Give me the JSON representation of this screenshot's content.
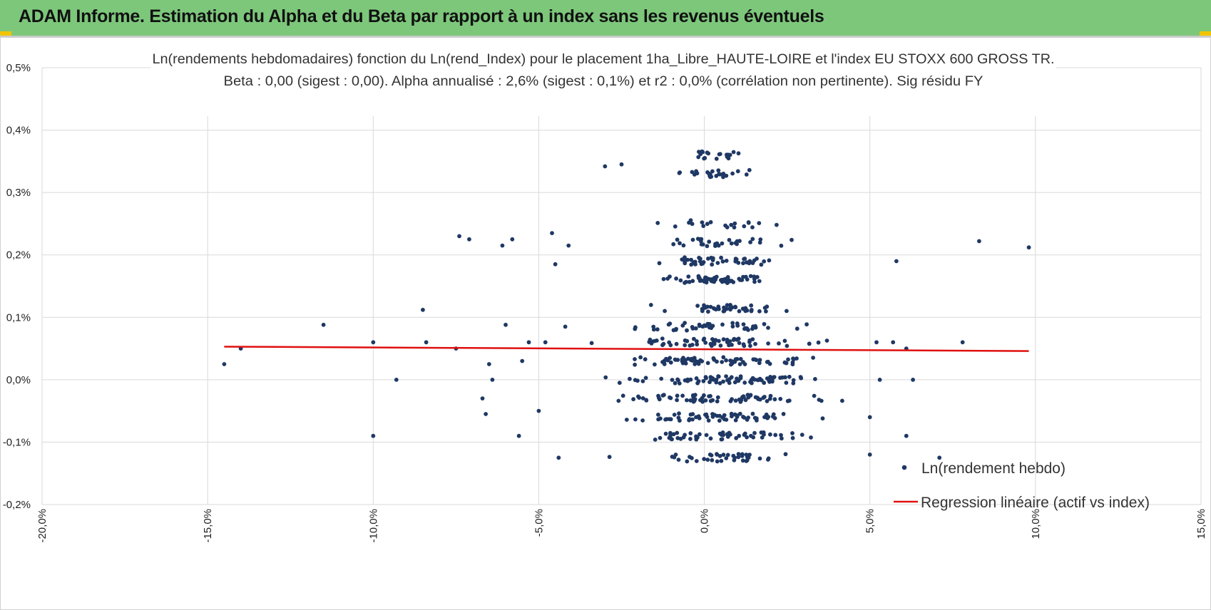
{
  "header": {
    "title": "ADAM Informe. Estimation du Alpha et du Beta par rapport à un index sans les revenus éventuels"
  },
  "colors": {
    "header_bg": "#7dc77b",
    "corner_accent": "#f2c400",
    "points": "#1f3864",
    "regression": "#e01010",
    "grid": "#d9d9d9"
  },
  "chart_data": {
    "type": "scatter",
    "title": "Ln(rendements hebdomadaires) fonction du Ln(rend_Index) pour le placement 1ha_Libre_HAUTE-LOIRE et l'index EU STOXX 600 GROSS TR.",
    "subtitle": "Beta : 0,00 (sigest : 0,00). Alpha annualisé : 2,6% (sigest : 0,1%) et r2 : 0,0% (corrélation non pertinente). Sig résidu FY",
    "xlim": [
      -0.2,
      0.15
    ],
    "ylim": [
      -0.002,
      0.005
    ],
    "x_ticks": [
      "-20,0%",
      "-15,0%",
      "-10,0%",
      "-5,0%",
      "0,0%",
      "5,0%",
      "10,0%",
      "15,0%"
    ],
    "y_ticks": [
      "-0,2%",
      "-0,1%",
      "0,0%",
      "0,1%",
      "0,2%",
      "0,3%",
      "0,4%",
      "0,5%"
    ],
    "grid": true,
    "legend_position": "bottom-right",
    "legend": [
      {
        "label": "Ln(rendement hebdo)",
        "marker": "point"
      },
      {
        "label": "Regression linéaire (actif vs index)",
        "marker": "line"
      }
    ],
    "series": [
      {
        "name": "Ln(rendement hebdo)",
        "note_bands_y": [
          -0.00125,
          -0.0009,
          -0.0006,
          -0.0003,
          0.0,
          0.0003,
          0.0006,
          0.00085,
          0.00115,
          0.0016,
          0.0019,
          0.0022,
          0.0025,
          0.0033,
          0.0036
        ],
        "outliers": [
          {
            "x": -0.145,
            "y": 0.00025
          },
          {
            "x": -0.14,
            "y": 0.0005
          },
          {
            "x": -0.115,
            "y": 0.00088
          },
          {
            "x": -0.1,
            "y": 0.0006
          },
          {
            "x": -0.1,
            "y": -0.0009
          },
          {
            "x": -0.093,
            "y": 0.0
          },
          {
            "x": -0.085,
            "y": 0.00112
          },
          {
            "x": -0.084,
            "y": 0.0006
          },
          {
            "x": -0.075,
            "y": 0.0005
          },
          {
            "x": -0.074,
            "y": 0.0023
          },
          {
            "x": -0.071,
            "y": 0.00225
          },
          {
            "x": -0.067,
            "y": -0.0003
          },
          {
            "x": -0.066,
            "y": -0.00055
          },
          {
            "x": -0.065,
            "y": 0.00025
          },
          {
            "x": -0.064,
            "y": 0.0
          },
          {
            "x": -0.061,
            "y": 0.00215
          },
          {
            "x": -0.06,
            "y": 0.00088
          },
          {
            "x": -0.058,
            "y": 0.00225
          },
          {
            "x": -0.056,
            "y": -0.0009
          },
          {
            "x": -0.055,
            "y": 0.0003
          },
          {
            "x": -0.053,
            "y": 0.0006
          },
          {
            "x": -0.05,
            "y": -0.0005
          },
          {
            "x": -0.048,
            "y": 0.0006
          },
          {
            "x": -0.046,
            "y": 0.00235
          },
          {
            "x": -0.045,
            "y": 0.00185
          },
          {
            "x": -0.044,
            "y": -0.00125
          },
          {
            "x": -0.042,
            "y": 0.00085
          },
          {
            "x": -0.041,
            "y": 0.00215
          },
          {
            "x": -0.03,
            "y": 0.00342
          },
          {
            "x": -0.025,
            "y": 0.00345
          },
          {
            "x": 0.05,
            "y": -0.0012
          },
          {
            "x": 0.05,
            "y": -0.0006
          },
          {
            "x": 0.052,
            "y": 0.0006
          },
          {
            "x": 0.053,
            "y": 0.0
          },
          {
            "x": 0.057,
            "y": 0.0006
          },
          {
            "x": 0.058,
            "y": 0.0019
          },
          {
            "x": 0.061,
            "y": 0.0005
          },
          {
            "x": 0.061,
            "y": -0.0009
          },
          {
            "x": 0.063,
            "y": 0.0
          },
          {
            "x": 0.071,
            "y": -0.00125
          },
          {
            "x": 0.078,
            "y": 0.0006
          },
          {
            "x": 0.083,
            "y": 0.00222
          },
          {
            "x": 0.098,
            "y": 0.00212
          }
        ]
      },
      {
        "name": "Regression linéaire (actif vs index)",
        "x": [
          -0.145,
          0.098
        ],
        "y": [
          0.00053,
          0.00046
        ]
      }
    ]
  }
}
